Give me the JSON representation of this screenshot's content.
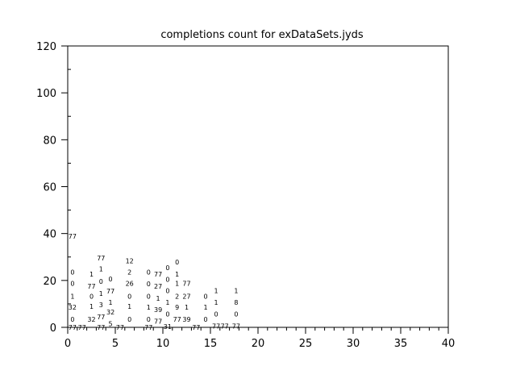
{
  "chart_data": {
    "type": "scatter",
    "title": "completions count for exDataSets.jyds",
    "xlabel": "",
    "ylabel": "",
    "xlim": [
      0,
      40
    ],
    "ylim": [
      0,
      120
    ],
    "x_ticks": [
      "0",
      "5",
      "10",
      "15",
      "20",
      "25",
      "30",
      "35",
      "40"
    ],
    "y_ticks": [
      "0",
      "20",
      "40",
      "60",
      "80",
      "100",
      "120"
    ],
    "grid": false,
    "marker": "text label",
    "points": [
      {
        "x": 0.5,
        "y": 38.8,
        "label": "77"
      },
      {
        "x": 0.5,
        "y": 23.6,
        "label": "0"
      },
      {
        "x": 0.5,
        "y": 18.7,
        "label": "0"
      },
      {
        "x": 0.5,
        "y": 13.3,
        "label": "1"
      },
      {
        "x": 0.5,
        "y": 8.6,
        "label": "32"
      },
      {
        "x": 0.5,
        "y": 3.4,
        "label": "0"
      },
      {
        "x": 0.5,
        "y": 0,
        "label": "77"
      },
      {
        "x": 1.5,
        "y": 0,
        "label": "77"
      },
      {
        "x": 2.5,
        "y": 22.7,
        "label": "1"
      },
      {
        "x": 2.5,
        "y": 17.5,
        "label": "77"
      },
      {
        "x": 2.5,
        "y": 13.3,
        "label": "0"
      },
      {
        "x": 2.5,
        "y": 8.9,
        "label": "1"
      },
      {
        "x": 2.5,
        "y": 3.4,
        "label": "32"
      },
      {
        "x": 3.5,
        "y": 29.6,
        "label": "77"
      },
      {
        "x": 3.5,
        "y": 25,
        "label": "1"
      },
      {
        "x": 3.5,
        "y": 19.6,
        "label": "0"
      },
      {
        "x": 3.5,
        "y": 14.4,
        "label": "1"
      },
      {
        "x": 3.5,
        "y": 9.7,
        "label": "3"
      },
      {
        "x": 3.5,
        "y": 4.4,
        "label": "77"
      },
      {
        "x": 3.5,
        "y": 0,
        "label": "77"
      },
      {
        "x": 4.5,
        "y": 20.6,
        "label": "0"
      },
      {
        "x": 4.5,
        "y": 15.5,
        "label": "77"
      },
      {
        "x": 4.5,
        "y": 10.7,
        "label": "1"
      },
      {
        "x": 4.5,
        "y": 6.6,
        "label": "32"
      },
      {
        "x": 4.5,
        "y": 1.5,
        "label": "5"
      },
      {
        "x": 5.5,
        "y": 0,
        "label": "77"
      },
      {
        "x": 6.5,
        "y": 28.4,
        "label": "12"
      },
      {
        "x": 6.5,
        "y": 23.6,
        "label": "2"
      },
      {
        "x": 6.5,
        "y": 18.7,
        "label": "26"
      },
      {
        "x": 6.5,
        "y": 13.3,
        "label": "0"
      },
      {
        "x": 6.5,
        "y": 8.9,
        "label": "1"
      },
      {
        "x": 6.5,
        "y": 3.4,
        "label": "0"
      },
      {
        "x": 8.5,
        "y": 23.6,
        "label": "0"
      },
      {
        "x": 8.5,
        "y": 18.5,
        "label": "0"
      },
      {
        "x": 8.5,
        "y": 13.3,
        "label": "0"
      },
      {
        "x": 8.5,
        "y": 8.6,
        "label": "1"
      },
      {
        "x": 8.5,
        "y": 3.4,
        "label": "0"
      },
      {
        "x": 8.5,
        "y": 0,
        "label": "77"
      },
      {
        "x": 9.5,
        "y": 22.7,
        "label": "77"
      },
      {
        "x": 9.5,
        "y": 17.5,
        "label": "27"
      },
      {
        "x": 9.5,
        "y": 12.4,
        "label": "1"
      },
      {
        "x": 9.5,
        "y": 7.6,
        "label": "39"
      },
      {
        "x": 9.5,
        "y": 2.6,
        "label": "77"
      },
      {
        "x": 10.5,
        "y": 25.5,
        "label": "0"
      },
      {
        "x": 10.5,
        "y": 20.4,
        "label": "0"
      },
      {
        "x": 10.5,
        "y": 15.6,
        "label": "0"
      },
      {
        "x": 10.5,
        "y": 10.7,
        "label": "1"
      },
      {
        "x": 10.5,
        "y": 5.7,
        "label": "0"
      },
      {
        "x": 10.5,
        "y": 0.3,
        "label": "31"
      },
      {
        "x": 11.5,
        "y": 27.9,
        "label": "0"
      },
      {
        "x": 11.5,
        "y": 22.7,
        "label": "1"
      },
      {
        "x": 11.5,
        "y": 18.7,
        "label": "1"
      },
      {
        "x": 11.5,
        "y": 13.3,
        "label": "2"
      },
      {
        "x": 11.5,
        "y": 8.6,
        "label": "9"
      },
      {
        "x": 11.5,
        "y": 3.4,
        "label": "77"
      },
      {
        "x": 12.5,
        "y": 18.7,
        "label": "77"
      },
      {
        "x": 12.5,
        "y": 13.3,
        "label": "27"
      },
      {
        "x": 12.5,
        "y": 8.6,
        "label": "1"
      },
      {
        "x": 12.5,
        "y": 3.4,
        "label": "39"
      },
      {
        "x": 13.5,
        "y": 0,
        "label": "77"
      },
      {
        "x": 14.5,
        "y": 13.3,
        "label": "0"
      },
      {
        "x": 14.5,
        "y": 8.6,
        "label": "1"
      },
      {
        "x": 14.5,
        "y": 3.4,
        "label": "0"
      },
      {
        "x": 15.6,
        "y": 15.6,
        "label": "1"
      },
      {
        "x": 15.6,
        "y": 10.7,
        "label": "1"
      },
      {
        "x": 15.6,
        "y": 5.7,
        "label": "0"
      },
      {
        "x": 15.6,
        "y": 0.5,
        "label": "77"
      },
      {
        "x": 16.5,
        "y": 0.5,
        "label": "77"
      },
      {
        "x": 17.7,
        "y": 15.6,
        "label": "1"
      },
      {
        "x": 17.7,
        "y": 10.7,
        "label": "8"
      },
      {
        "x": 17.7,
        "y": 5.7,
        "label": "0"
      },
      {
        "x": 17.7,
        "y": 0.5,
        "label": "77"
      }
    ]
  }
}
